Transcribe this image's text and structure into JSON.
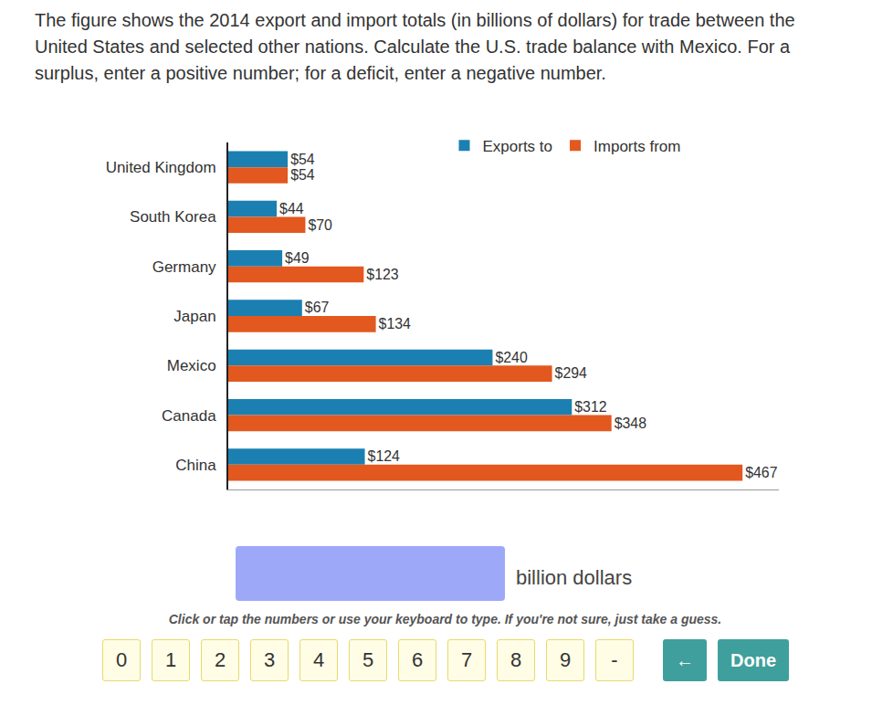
{
  "question": {
    "lines": [
      "The figure shows the 2014 export and import totals (in billions of dollars) for trade between the",
      "United States and selected other nations. Calculate the U.S. trade balance with Mexico. For a",
      "surplus, enter a positive number; for a deficit, enter a negative number."
    ]
  },
  "chart_data": {
    "type": "bar",
    "orientation": "horizontal",
    "categories": [
      "United Kingdom",
      "South Korea",
      "Germany",
      "Japan",
      "Mexico",
      "Canada",
      "China"
    ],
    "series": [
      {
        "name": "Exports to",
        "color": "#1b80b1",
        "values": [
          54,
          44,
          49,
          67,
          240,
          312,
          124
        ],
        "value_labels": [
          "$54",
          "$44",
          "$49",
          "$67",
          "$240",
          "$312",
          "$124"
        ]
      },
      {
        "name": "Imports from",
        "color": "#e2581f",
        "values": [
          54,
          70,
          123,
          134,
          294,
          348,
          467
        ],
        "value_labels": [
          "$54",
          "$70",
          "$123",
          "$134",
          "$294",
          "$348",
          "$467"
        ]
      }
    ],
    "xlim": [
      0,
      500
    ],
    "tick_labels": "y",
    "data_labels": true,
    "legend": "upper right",
    "grid": false
  },
  "answer": {
    "unit": "billion dollars",
    "instruction": "Click or tap the numbers or use your keyboard to type. If you're not sure, just take a guess.",
    "keys": [
      "0",
      "1",
      "2",
      "3",
      "4",
      "5",
      "6",
      "7",
      "8",
      "9",
      "-"
    ],
    "actions": [
      "←",
      "Done"
    ]
  }
}
